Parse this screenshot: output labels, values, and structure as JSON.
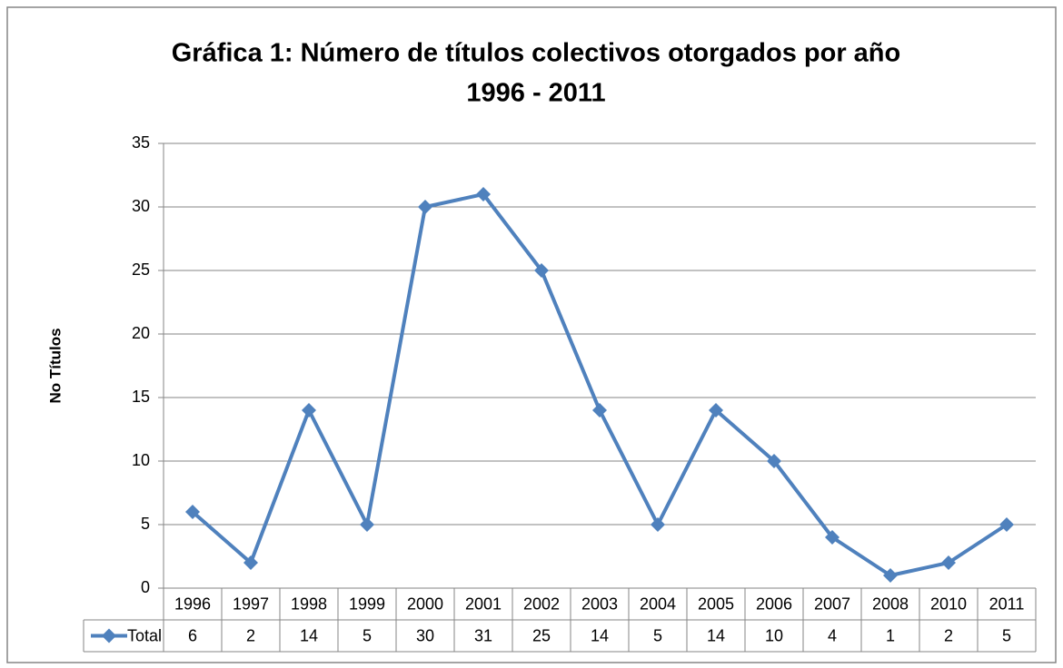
{
  "chart_data": {
    "type": "line",
    "title": "Gráfica 1: Número de títulos colectivos otorgados por año",
    "subtitle": "1996 - 2011",
    "y_label": "No Títulos",
    "categories": [
      "1996",
      "1997",
      "1998",
      "1999",
      "2000",
      "2001",
      "2002",
      "2003",
      "2004",
      "2005",
      "2006",
      "2007",
      "2008",
      "2010",
      "2011"
    ],
    "series": [
      {
        "name": "Total",
        "color": "#4f81bd",
        "values": [
          6,
          2,
          14,
          5,
          30,
          31,
          25,
          14,
          5,
          14,
          10,
          4,
          1,
          2,
          5
        ]
      }
    ],
    "ylim": [
      0,
      35
    ],
    "yticks": [
      0,
      5,
      10,
      15,
      20,
      25,
      30,
      35
    ],
    "grid": true
  }
}
